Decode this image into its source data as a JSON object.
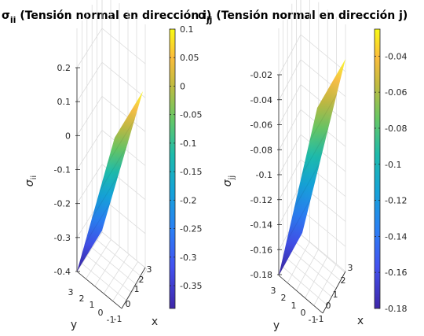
{
  "chart_data": [
    {
      "type": "surface",
      "title": {
        "symbol": "σ",
        "subscript": "ii",
        "text": " (Tensión normal en dirección i)"
      },
      "xlabel": "x",
      "ylabel": "y",
      "zlabel": {
        "symbol": "σ",
        "subscript": "ii"
      },
      "x_ticks": [
        "-1",
        "0",
        "1",
        "2",
        "3"
      ],
      "y_ticks": [
        "-1",
        "0",
        "1",
        "2",
        "3"
      ],
      "zlim": [
        -0.4,
        0.2
      ],
      "z_ticks": [
        "0.2",
        "0.1",
        "0",
        "-0.1",
        "-0.2",
        "-0.3",
        "-0.4"
      ],
      "surface_range": [
        -0.39,
        0.11
      ],
      "colorbar": {
        "min": -0.39,
        "max": 0.1,
        "ticks": [
          "0.1",
          "0.05",
          "0",
          "-0.05",
          "-0.1",
          "-0.15",
          "-0.2",
          "-0.25",
          "-0.3",
          "-0.35"
        ],
        "tick_values": [
          0.1,
          0.05,
          0,
          -0.05,
          -0.1,
          -0.15,
          -0.2,
          -0.25,
          -0.3,
          -0.35
        ]
      },
      "colormap": "parula",
      "grid": true
    },
    {
      "type": "surface",
      "title": {
        "symbol": "σ",
        "subscript": "jj",
        "text": " (Tensión normal en dirección j)"
      },
      "xlabel": "x",
      "ylabel": "y",
      "zlabel": {
        "symbol": "σ",
        "subscript": "jj"
      },
      "x_ticks": [
        "-1",
        "0",
        "1",
        "2",
        "3"
      ],
      "y_ticks": [
        "-1",
        "0",
        "1",
        "2",
        "3"
      ],
      "zlim": [
        -0.18,
        -0.02
      ],
      "z_ticks": [
        "-0.02",
        "-0.04",
        "-0.06",
        "-0.08",
        "-0.1",
        "-0.12",
        "-0.14",
        "-0.16",
        "-0.18"
      ],
      "surface_range": [
        -0.18,
        -0.025
      ],
      "colorbar": {
        "min": -0.18,
        "max": -0.025,
        "ticks": [
          "-0.04",
          "-0.06",
          "-0.08",
          "-0.1",
          "-0.12",
          "-0.14",
          "-0.16",
          "-0.18"
        ],
        "tick_values": [
          -0.04,
          -0.06,
          -0.08,
          -0.1,
          -0.12,
          -0.14,
          -0.16,
          -0.18
        ]
      },
      "colormap": "parula",
      "grid": true
    }
  ]
}
